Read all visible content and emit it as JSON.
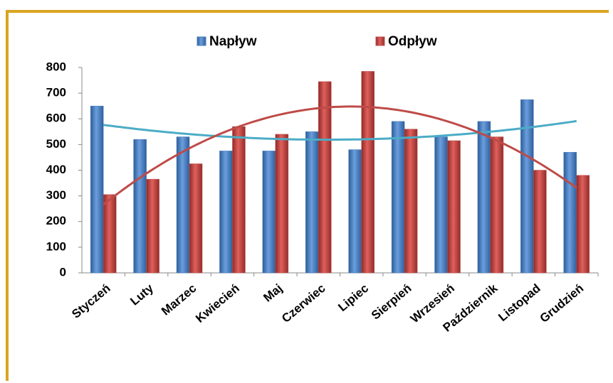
{
  "chart_data": {
    "type": "bar",
    "categories": [
      "Styczeń",
      "Luty",
      "Marzec",
      "Kwiecień",
      "Maj",
      "Czerwiec",
      "Lipiec",
      "Sierpień",
      "Wrzesień",
      "Październik",
      "Listopad",
      "Grudzień"
    ],
    "series": [
      {
        "name": "Napływ",
        "color": "#4a7ebb",
        "trendline": "polynomial",
        "trendline_color": "#4bacc6",
        "values": [
          650,
          520,
          530,
          475,
          475,
          550,
          480,
          590,
          530,
          590,
          675,
          470
        ]
      },
      {
        "name": "Odpływ",
        "color": "#c0504d",
        "trendline": "polynomial",
        "trendline_color": "#be4b48",
        "values": [
          305,
          365,
          425,
          570,
          540,
          745,
          785,
          560,
          515,
          530,
          400,
          380
        ]
      }
    ],
    "ylim": [
      0,
      800
    ],
    "yticks": [
      0,
      100,
      200,
      300,
      400,
      500,
      600,
      700,
      800
    ],
    "grid": false,
    "legend": "top"
  }
}
